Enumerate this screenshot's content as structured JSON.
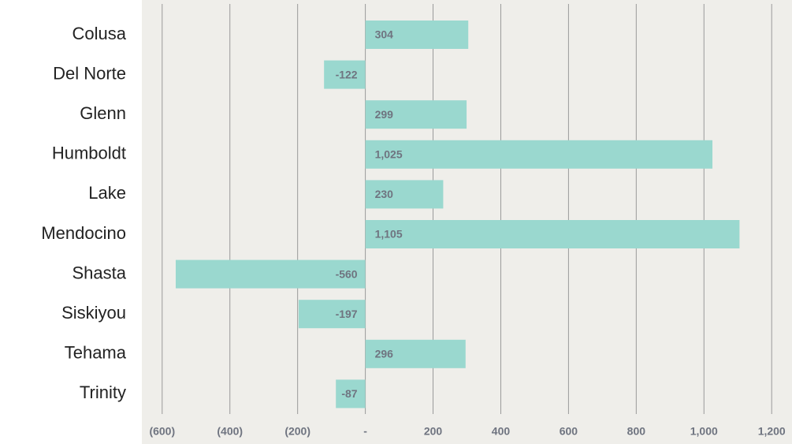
{
  "chart_data": {
    "type": "hbar",
    "categories": [
      "Colusa",
      "Del Norte",
      "Glenn",
      "Humboldt",
      "Lake",
      "Mendocino",
      "Shasta",
      "Siskiyou",
      "Tehama",
      "Trinity"
    ],
    "values": [
      304,
      -122,
      299,
      1025,
      230,
      1105,
      -560,
      -197,
      296,
      -87
    ],
    "value_labels": [
      "304",
      "-122",
      "299",
      "1,025",
      "230",
      "1,105",
      "-560",
      "-197",
      "296",
      "-87"
    ],
    "color": "#9ad8cf",
    "xlim": [
      -660,
      1260
    ],
    "xticks": [
      {
        "value": -600,
        "label": "(600)"
      },
      {
        "value": -400,
        "label": "(400)"
      },
      {
        "value": -200,
        "label": "(200)"
      },
      {
        "value": 0,
        "label": "-"
      },
      200,
      400,
      600,
      800,
      {
        "value": 1000,
        "label": "1,000"
      },
      {
        "value": 1200,
        "label": "1,200"
      }
    ],
    "grid": true
  }
}
